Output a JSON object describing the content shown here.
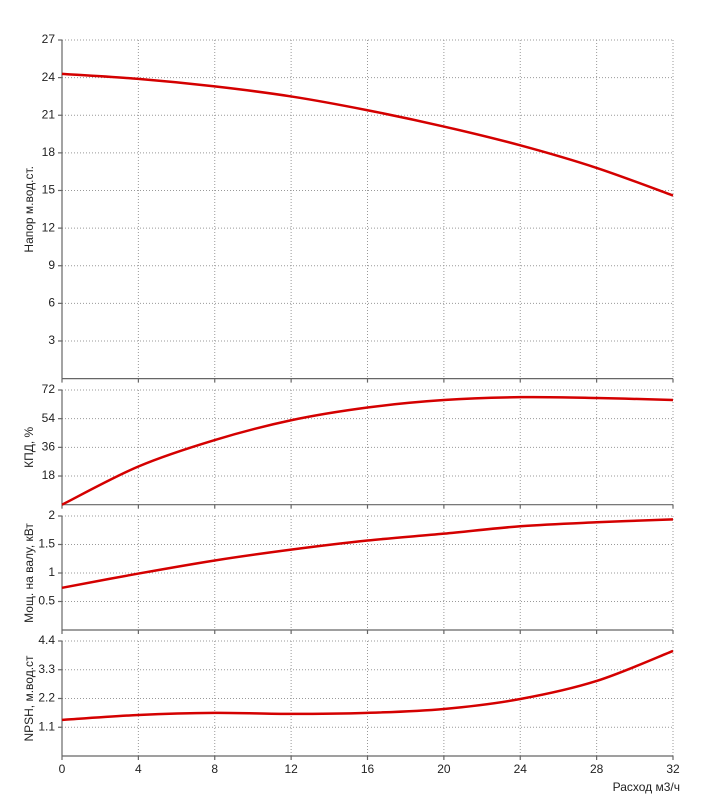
{
  "chart_data": [
    {
      "type": "line",
      "ylabel": "Напор м.вод.ст.",
      "ylim": [
        0,
        27
      ],
      "yticks": [
        3,
        6,
        9,
        12,
        15,
        18,
        21,
        24,
        27
      ],
      "grid": true,
      "x": [
        0,
        4,
        8,
        12,
        16,
        20,
        24,
        28,
        32
      ],
      "series": [
        {
          "color": "#d40000",
          "values": [
            24.3,
            23.9,
            23.3,
            22.5,
            21.4,
            20.1,
            18.6,
            16.8,
            14.6
          ]
        }
      ]
    },
    {
      "type": "line",
      "ylabel": "КПД, %",
      "ylim": [
        0,
        72
      ],
      "yticks": [
        18,
        36,
        54,
        72
      ],
      "grid": true,
      "x": [
        0,
        4,
        8,
        12,
        16,
        20,
        24,
        28,
        32
      ],
      "series": [
        {
          "color": "#d40000",
          "values": [
            0,
            24,
            40.6,
            53,
            61,
            65.7,
            67.5,
            67,
            65.7
          ]
        }
      ]
    },
    {
      "type": "line",
      "ylabel": "Мощ. на валу, кВт",
      "ylim": [
        0,
        2
      ],
      "yticks": [
        0.5,
        1,
        1.5,
        2
      ],
      "grid": true,
      "x": [
        0,
        4,
        8,
        12,
        16,
        20,
        24,
        28,
        32
      ],
      "series": [
        {
          "color": "#d40000",
          "values": [
            0.74,
            0.99,
            1.22,
            1.41,
            1.57,
            1.69,
            1.82,
            1.89,
            1.94
          ]
        }
      ]
    },
    {
      "type": "line",
      "ylabel": "NPSH, м.вод.ст",
      "ylim": [
        0,
        4.4
      ],
      "yticks": [
        1.1,
        2.2,
        3.3,
        4.4
      ],
      "grid": true,
      "xlabel": "Расход м3/ч",
      "xlim": [
        0,
        32
      ],
      "xticks": [
        0,
        4,
        8,
        12,
        16,
        20,
        24,
        28,
        32
      ],
      "x": [
        0,
        4,
        8,
        12,
        16,
        20,
        24,
        28,
        32
      ],
      "series": [
        {
          "color": "#d40000",
          "values": [
            1.38,
            1.57,
            1.65,
            1.61,
            1.65,
            1.8,
            2.18,
            2.87,
            4.02
          ]
        }
      ]
    }
  ]
}
